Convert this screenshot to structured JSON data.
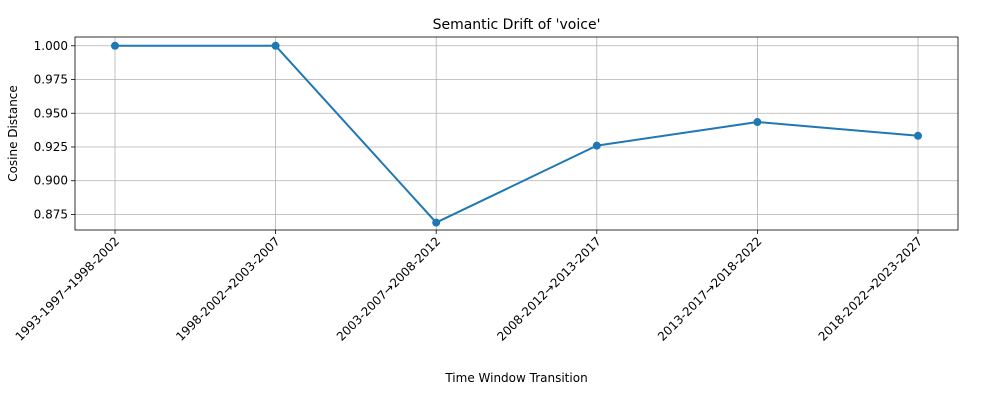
{
  "chart_data": {
    "type": "line",
    "title": "Semantic Drift of 'voice'",
    "xlabel": "Time Window Transition",
    "ylabel": "Cosine Distance",
    "categories": [
      "1993-1997→1998-2002",
      "1998-2002→2003-2007",
      "2003-2007→2008-2012",
      "2008-2012→2013-2017",
      "2013-2017→2018-2022",
      "2018-2022→2023-2027"
    ],
    "series": [
      {
        "values": [
          1.0,
          1.0,
          0.869,
          0.926,
          0.9435,
          0.9333
        ],
        "color": "#1f77b4",
        "marker": "circle"
      }
    ],
    "ylim": [
      0.8635,
      1.0065
    ],
    "yticks": [
      "0.875",
      "0.900",
      "0.925",
      "0.950",
      "0.975",
      "1.000"
    ],
    "grid": true,
    "legend": "none"
  }
}
